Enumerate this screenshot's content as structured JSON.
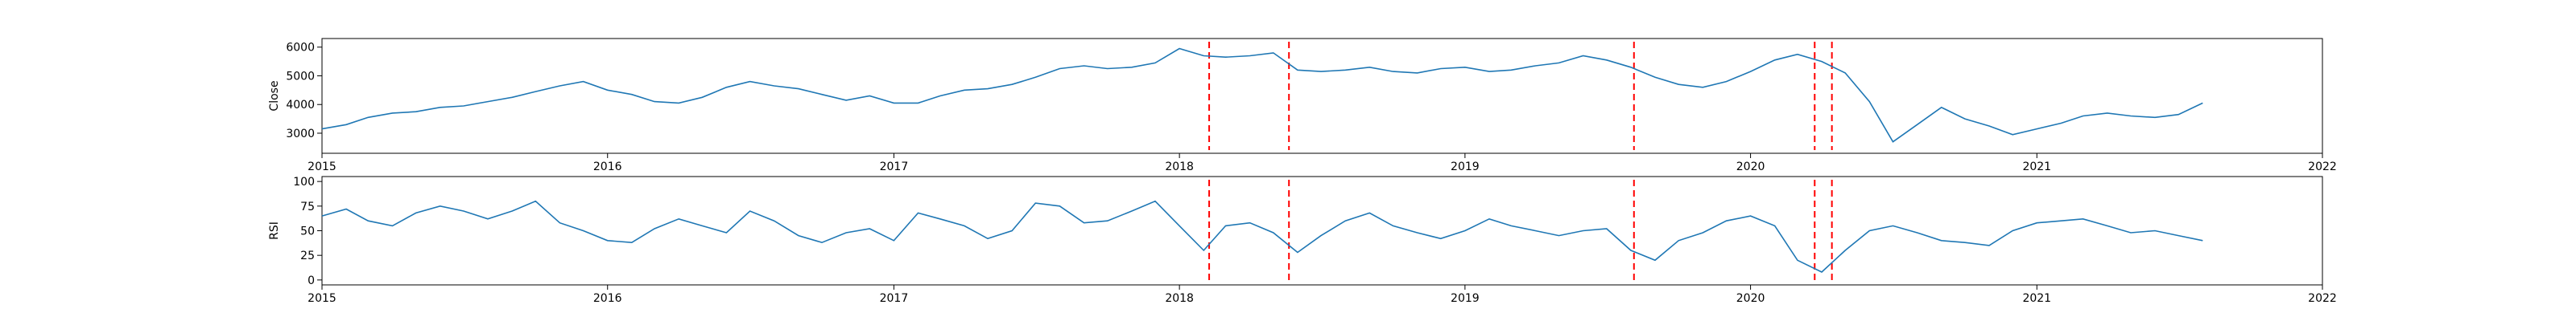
{
  "chart_data": [
    {
      "type": "line",
      "panel": "close",
      "xlabel": "",
      "ylabel": "Close",
      "xlim": [
        "2015-01-01",
        "2022-01-01"
      ],
      "ylim": [
        2300,
        6300
      ],
      "x_ticks": [
        "2015",
        "2016",
        "2017",
        "2018",
        "2019",
        "2020",
        "2021",
        "2022"
      ],
      "y_ticks": [
        3000,
        4000,
        5000,
        6000
      ],
      "grid": false,
      "series_color": "#1f77b4",
      "series": [
        {
          "x": [
            "2015-01-01",
            "2015-02-01",
            "2015-03-01",
            "2015-04-01",
            "2015-05-01",
            "2015-06-01",
            "2015-07-01",
            "2015-08-01",
            "2015-09-01",
            "2015-10-01",
            "2015-11-01",
            "2015-12-01",
            "2016-01-01",
            "2016-02-01",
            "2016-03-01",
            "2016-04-01",
            "2016-05-01",
            "2016-06-01",
            "2016-07-01",
            "2016-08-01",
            "2016-09-01",
            "2016-10-01",
            "2016-11-01",
            "2016-12-01",
            "2017-01-01",
            "2017-02-01",
            "2017-03-01",
            "2017-04-01",
            "2017-05-01",
            "2017-06-01",
            "2017-07-01",
            "2017-08-01",
            "2017-09-01",
            "2017-10-01",
            "2017-11-01",
            "2017-12-01",
            "2018-01-01",
            "2018-02-01",
            "2018-03-01",
            "2018-04-01",
            "2018-05-01",
            "2018-06-01",
            "2018-07-01",
            "2018-08-01",
            "2018-09-01",
            "2018-10-01",
            "2018-11-01",
            "2018-12-01",
            "2019-01-01",
            "2019-02-01",
            "2019-03-01",
            "2019-04-01",
            "2019-05-01",
            "2019-06-01",
            "2019-07-01",
            "2019-08-01",
            "2019-09-01",
            "2019-10-01",
            "2019-11-01",
            "2019-12-01",
            "2020-01-01",
            "2020-02-01",
            "2020-03-01",
            "2020-04-01",
            "2020-05-01",
            "2020-06-01",
            "2020-07-01",
            "2020-08-01",
            "2020-09-01",
            "2020-10-01",
            "2020-11-01",
            "2020-12-01",
            "2021-01-01",
            "2021-02-01",
            "2021-03-01",
            "2021-04-01",
            "2021-05-01",
            "2021-06-01",
            "2021-07-01",
            "2021-08-01"
          ],
          "y": [
            3150,
            3300,
            3550,
            3700,
            3750,
            3900,
            3950,
            4100,
            4250,
            4450,
            4650,
            4800,
            4500,
            4350,
            4100,
            4050,
            4250,
            4600,
            4800,
            4650,
            4550,
            4350,
            4150,
            4300,
            4050,
            4050,
            4300,
            4500,
            4550,
            4700,
            4950,
            5250,
            5350,
            5250,
            5300,
            5450,
            5950,
            5700,
            5650,
            5700,
            5800,
            5200,
            5150,
            5200,
            5300,
            5150,
            5100,
            5250,
            5300,
            5150,
            5200,
            5350,
            5450,
            5700,
            5550,
            5300,
            4950,
            4700,
            4600,
            4800,
            5150,
            5550,
            5750,
            5500,
            5100,
            4100,
            2700,
            3300,
            3900,
            3500,
            3250,
            2950,
            3150,
            3350,
            3600,
            3700,
            3600,
            3550,
            3650,
            4050
          ]
        }
      ],
      "vlines": [
        "2018-02-08",
        "2018-05-21",
        "2019-08-05",
        "2020-03-23",
        "2020-04-14"
      ],
      "vline_color": "#ff0000"
    },
    {
      "type": "line",
      "panel": "rsi",
      "xlabel": "",
      "ylabel": "RSI",
      "xlim": [
        "2015-01-01",
        "2022-01-01"
      ],
      "ylim": [
        -5,
        105
      ],
      "x_ticks": [
        "2015",
        "2016",
        "2017",
        "2018",
        "2019",
        "2020",
        "2021",
        "2022"
      ],
      "y_ticks": [
        0,
        25,
        50,
        75,
        100
      ],
      "grid": false,
      "series_color": "#1f77b4",
      "series": [
        {
          "x": [
            "2015-01-01",
            "2015-02-01",
            "2015-03-01",
            "2015-04-01",
            "2015-05-01",
            "2015-06-01",
            "2015-07-01",
            "2015-08-01",
            "2015-09-01",
            "2015-10-01",
            "2015-11-01",
            "2015-12-01",
            "2016-01-01",
            "2016-02-01",
            "2016-03-01",
            "2016-04-01",
            "2016-05-01",
            "2016-06-01",
            "2016-07-01",
            "2016-08-01",
            "2016-09-01",
            "2016-10-01",
            "2016-11-01",
            "2016-12-01",
            "2017-01-01",
            "2017-02-01",
            "2017-03-01",
            "2017-04-01",
            "2017-05-01",
            "2017-06-01",
            "2017-07-01",
            "2017-08-01",
            "2017-09-01",
            "2017-10-01",
            "2017-11-01",
            "2017-12-01",
            "2018-01-01",
            "2018-02-01",
            "2018-03-01",
            "2018-04-01",
            "2018-05-01",
            "2018-06-01",
            "2018-07-01",
            "2018-08-01",
            "2018-09-01",
            "2018-10-01",
            "2018-11-01",
            "2018-12-01",
            "2019-01-01",
            "2019-02-01",
            "2019-03-01",
            "2019-04-01",
            "2019-05-01",
            "2019-06-01",
            "2019-07-01",
            "2019-08-01",
            "2019-09-01",
            "2019-10-01",
            "2019-11-01",
            "2019-12-01",
            "2020-01-01",
            "2020-02-01",
            "2020-03-01",
            "2020-04-01",
            "2020-05-01",
            "2020-06-01",
            "2020-07-01",
            "2020-08-01",
            "2020-09-01",
            "2020-10-01",
            "2020-11-01",
            "2020-12-01",
            "2021-01-01",
            "2021-02-01",
            "2021-03-01",
            "2021-04-01",
            "2021-05-01",
            "2021-06-01",
            "2021-07-01",
            "2021-08-01"
          ],
          "y": [
            65,
            72,
            60,
            55,
            68,
            75,
            70,
            62,
            70,
            80,
            58,
            50,
            40,
            38,
            52,
            62,
            55,
            48,
            70,
            60,
            45,
            38,
            48,
            52,
            40,
            68,
            62,
            55,
            42,
            50,
            78,
            75,
            58,
            60,
            70,
            80,
            55,
            30,
            55,
            58,
            48,
            28,
            45,
            60,
            68,
            55,
            48,
            42,
            50,
            62,
            55,
            50,
            45,
            50,
            52,
            30,
            20,
            40,
            48,
            60,
            65,
            55,
            20,
            8,
            30,
            50,
            55,
            48,
            40,
            38,
            35,
            50,
            58,
            60,
            62,
            55,
            48,
            50,
            45,
            40
          ]
        }
      ],
      "vlines": [
        "2018-02-08",
        "2018-05-21",
        "2019-08-05",
        "2020-03-23",
        "2020-04-14"
      ],
      "vline_color": "#ff0000"
    }
  ]
}
